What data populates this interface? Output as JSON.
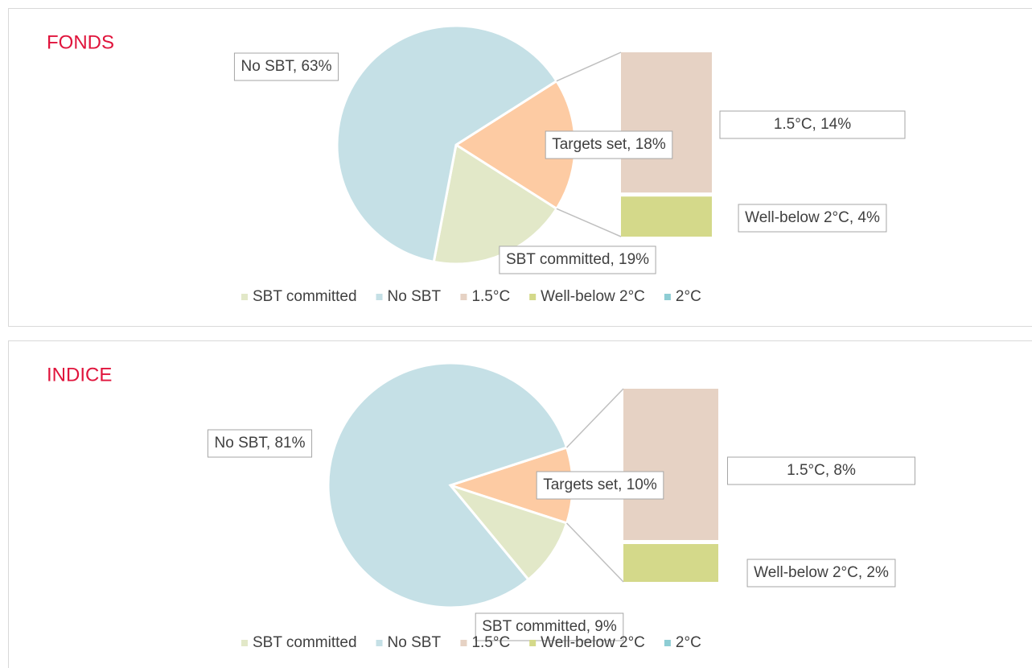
{
  "chart_data": [
    {
      "type": "pie-of-bar",
      "title": "FONDS",
      "pie": {
        "categories": [
          "Targets set",
          "SBT committed",
          "No SBT"
        ],
        "values": [
          18,
          19,
          63
        ],
        "value_labels": [
          "Targets set, 18%",
          "SBT committed, 19%",
          "No SBT, 63%"
        ],
        "colors": [
          "#fdcba3",
          "#e2e8c8",
          "#c5e0e6"
        ]
      },
      "bar": {
        "categories": [
          "1.5°C",
          "Well-below 2°C"
        ],
        "values": [
          14,
          4
        ],
        "value_labels": [
          "1.5°C, 14%",
          "Well-below 2°C, 4%"
        ],
        "colors": [
          "#e6d2c4",
          "#d4d98a"
        ]
      },
      "legend": [
        {
          "name": "SBT committed",
          "color": "#e2e8c8"
        },
        {
          "name": "No SBT",
          "color": "#c5e0e6"
        },
        {
          "name": "1.5°C",
          "color": "#e6d2c4"
        },
        {
          "name": "Well-below 2°C",
          "color": "#d4d98a"
        },
        {
          "name": "2°C",
          "color": "#8ecdd4"
        }
      ]
    },
    {
      "type": "pie-of-bar",
      "title": "INDICE",
      "pie": {
        "categories": [
          "Targets set",
          "SBT committed",
          "No SBT"
        ],
        "values": [
          10,
          9,
          81
        ],
        "value_labels": [
          "Targets set, 10%",
          "SBT committed, 9%",
          "No SBT, 81%"
        ],
        "colors": [
          "#fdcba3",
          "#e2e8c8",
          "#c5e0e6"
        ]
      },
      "bar": {
        "categories": [
          "1.5°C",
          "Well-below 2°C"
        ],
        "values": [
          8,
          2
        ],
        "value_labels": [
          "1.5°C, 8%",
          "Well-below 2°C, 2%"
        ],
        "colors": [
          "#e6d2c4",
          "#d4d98a"
        ]
      },
      "legend": [
        {
          "name": "SBT committed",
          "color": "#e2e8c8"
        },
        {
          "name": "No SBT",
          "color": "#c5e0e6"
        },
        {
          "name": "1.5°C",
          "color": "#e6d2c4"
        },
        {
          "name": "Well-below 2°C",
          "color": "#d4d98a"
        },
        {
          "name": "2°C",
          "color": "#8ecdd4"
        }
      ]
    }
  ]
}
